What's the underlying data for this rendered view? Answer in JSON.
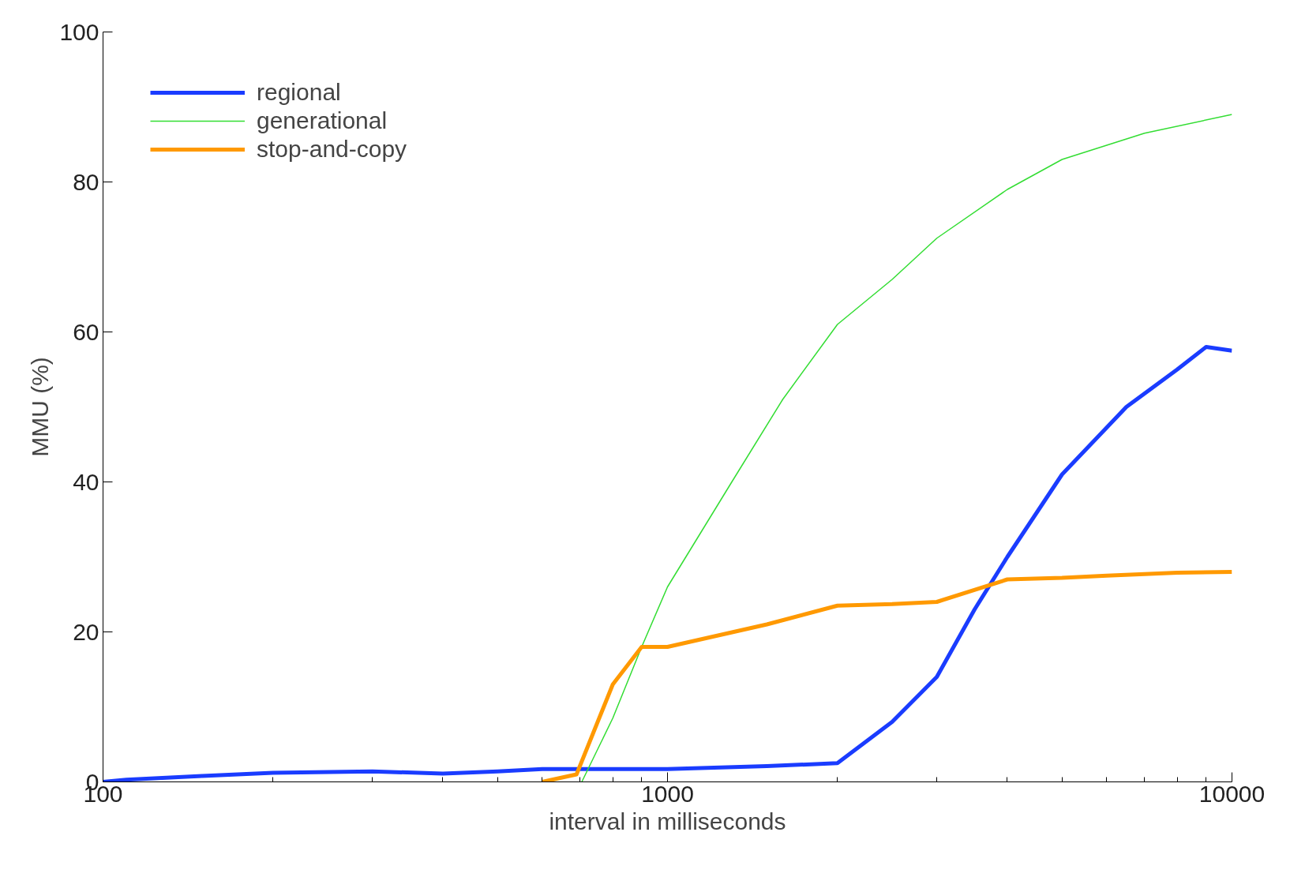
{
  "chart_data": {
    "type": "line",
    "xlabel": "interval in milliseconds",
    "ylabel": "MMU (%)",
    "log": "x",
    "xlim": [
      100,
      10000
    ],
    "xticks": [
      100,
      1000,
      10000
    ],
    "ylim": [
      0,
      100
    ],
    "yticks": [
      0,
      20,
      40,
      60,
      80,
      100
    ],
    "grid": false,
    "legend": "top left",
    "marker": "none",
    "line_style": "solid",
    "series": [
      {
        "name": "regional",
        "color": "#1a3cff",
        "x": [
          100,
          110,
          150,
          200,
          300,
          400,
          500,
          600,
          800,
          1000,
          1500,
          2000,
          2500,
          3000,
          3500,
          4000,
          5000,
          6500,
          8000,
          9000,
          10000
        ],
        "values": [
          0,
          0.3,
          0.8,
          1.2,
          1.4,
          1.1,
          1.4,
          1.7,
          1.7,
          1.7,
          2.1,
          2.5,
          8,
          14,
          23,
          30,
          41,
          50,
          55,
          58,
          57.5
        ]
      },
      {
        "name": "generational",
        "color": "#33dd33",
        "x": [
          705,
          800,
          900,
          1000,
          1300,
          1600,
          2000,
          2500,
          3000,
          4000,
          5000,
          7000,
          10000
        ],
        "values": [
          0,
          8.5,
          18,
          26,
          40,
          51,
          61,
          67,
          72.5,
          79,
          83,
          86.5,
          89
        ]
      },
      {
        "name": "stop-and-copy",
        "color": "#ff9900",
        "x": [
          600,
          690,
          800,
          900,
          1000,
          1500,
          2000,
          2500,
          3000,
          4000,
          5000,
          6000,
          8000,
          10000
        ],
        "values": [
          0,
          1,
          13,
          18,
          18,
          21,
          23.5,
          23.7,
          24,
          27,
          27.2,
          27.5,
          27.9,
          28
        ]
      }
    ]
  }
}
